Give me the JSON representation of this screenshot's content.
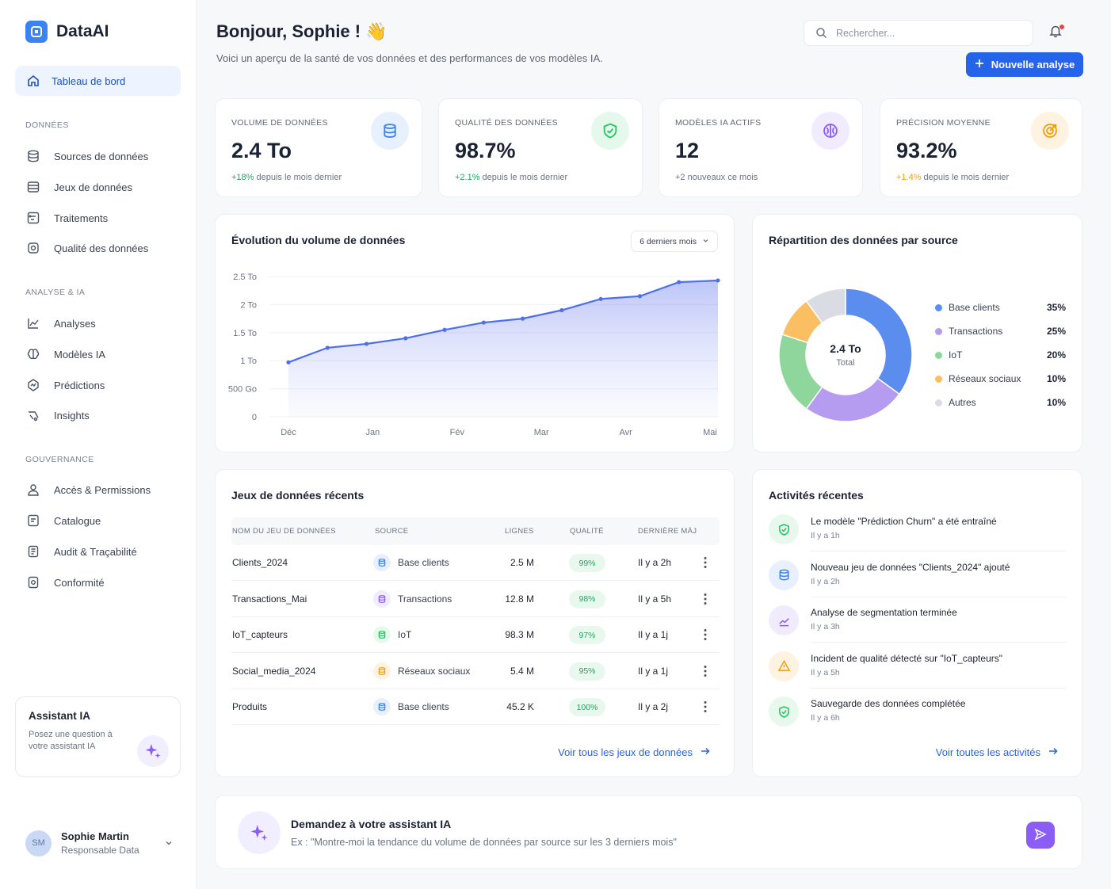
{
  "app": {
    "name": "DataAI"
  },
  "sidebar": {
    "active": {
      "label": "Tableau de bord",
      "icon": "home-icon"
    },
    "sections": {
      "donnees": {
        "title": "DONNÉES",
        "items": [
          "Sources de données",
          "Jeux de données",
          "Traitements",
          "Qualité des données"
        ]
      },
      "analyse": {
        "title": "ANALYSE & IA",
        "items": [
          "Analyses",
          "Modèles IA",
          "Prédictions",
          "Insights"
        ]
      },
      "gouvernance": {
        "title": "GOUVERNANCE",
        "items": [
          "Accès & Permissions",
          "Catalogue",
          "Audit & Traçabilité",
          "Conformité"
        ]
      }
    },
    "assistant_card": {
      "title": "Assistant IA",
      "description": "Posez une question à votre assistant IA"
    },
    "profile": {
      "initials": "SM",
      "name": "Sophie Martin",
      "role": "Responsable Data"
    }
  },
  "header": {
    "greeting": "Bonjour, Sophie ! 👋",
    "subtitle": "Voici un aperçu de la santé de vos données et des performances de vos modèles IA.",
    "search_placeholder": "Rechercher...",
    "new_button": "Nouvelle analyse"
  },
  "kpis": [
    {
      "label": "VOLUME DE DONNÉES",
      "value": "2.4 To",
      "delta": "+18%",
      "delta_text": " depuis le mois dernier",
      "icon": "database-icon",
      "accent": "#3b82f6"
    },
    {
      "label": "QUALITÉ DES DONNÉES",
      "value": "98.7%",
      "delta": "+2.1%",
      "delta_text": " depuis le mois dernier",
      "icon": "shield-check-icon",
      "accent": "#22c55e"
    },
    {
      "label": "MODÈLES IA ACTIFS",
      "value": "12",
      "delta": "",
      "delta_text": "+2 nouveaux ce mois",
      "icon": "brain-icon",
      "accent": "#8b5cf6"
    },
    {
      "label": "PRÉCISION MOYENNE",
      "value": "93.2%",
      "delta": "+1.4%",
      "delta_text": " depuis le mois dernier",
      "icon": "target-icon",
      "accent": "#f59e0b"
    }
  ],
  "volume_chart": {
    "title": "Évolution du volume de données",
    "period": "6 derniers mois",
    "chart_data": {
      "type": "area",
      "x_tick_labels": [
        "Déc",
        "Jan",
        "Fév",
        "Mar",
        "Avr",
        "Mai"
      ],
      "y_tick_labels": [
        "0",
        "500 Go",
        "1 To",
        "1.5 To",
        "2 To",
        "2.5 To"
      ],
      "ylim": [
        0,
        2.5
      ],
      "values": [
        0.97,
        1.23,
        1.3,
        1.4,
        1.55,
        1.68,
        1.75,
        1.9,
        2.1,
        2.15,
        2.4,
        2.43
      ],
      "color": "#4f6fe8"
    }
  },
  "source_chart": {
    "title": "Répartition des données par source",
    "center_value": "2.4 To",
    "center_label": "Total",
    "chart_data": {
      "type": "pie",
      "labels": [
        "Base clients",
        "Transactions",
        "IoT",
        "Réseaux sociaux",
        "Autres"
      ],
      "values": [
        35,
        25,
        20,
        10,
        10
      ],
      "value_labels": [
        "35%",
        "25%",
        "20%",
        "10%",
        "10%"
      ],
      "colors": [
        "#5b8def",
        "#b69cf0",
        "#8fd69c",
        "#fbbf63",
        "#d9dce2"
      ]
    }
  },
  "datasets": {
    "title": "Jeux de données récents",
    "headers": [
      "NOM DU JEU DE DONNÉES",
      "SOURCE",
      "LIGNES",
      "QUALITÉ",
      "DERNIÈRE MÀJ"
    ],
    "rows": [
      {
        "name": "Clients_2024",
        "source": "Base clients",
        "lines": "2.5 M",
        "quality": "99%",
        "updated": "Il y a 2h",
        "color": "#3b82f6",
        "bg": "#e8f0fe"
      },
      {
        "name": "Transactions_Mai",
        "source": "Transactions",
        "lines": "12.8 M",
        "quality": "98%",
        "updated": "Il y a 5h",
        "color": "#8b5cf6",
        "bg": "#f1ebfe"
      },
      {
        "name": "IoT_capteurs",
        "source": "IoT",
        "lines": "98.3 M",
        "quality": "97%",
        "updated": "Il y a 1j",
        "color": "#22c55e",
        "bg": "#e7f8ec"
      },
      {
        "name": "Social_media_2024",
        "source": "Réseaux sociaux",
        "lines": "5.4 M",
        "quality": "95%",
        "updated": "Il y a 1j",
        "color": "#f59e0b",
        "bg": "#fef3e0"
      },
      {
        "name": "Produits",
        "source": "Base clients",
        "lines": "45.2 K",
        "quality": "100%",
        "updated": "Il y a 2j",
        "color": "#3b82f6",
        "bg": "#e8f0fe"
      }
    ],
    "see_all": "Voir tous les jeux de données"
  },
  "activities": {
    "title": "Activités récentes",
    "items": [
      {
        "text": "Le modèle \"Prédiction Churn\" a été entraîné",
        "time": "Il y a 1h",
        "icon": "check-circle-icon",
        "color": "#22c55e",
        "bg": "#e7f8ec"
      },
      {
        "text": "Nouveau jeu de données \"Clients_2024\" ajouté",
        "time": "Il y a 2h",
        "icon": "database-icon",
        "color": "#3b82f6",
        "bg": "#e8f0fe"
      },
      {
        "text": "Analyse de segmentation terminée",
        "time": "Il y a 3h",
        "icon": "trend-icon",
        "color": "#8b5cf6",
        "bg": "#f1ebfe"
      },
      {
        "text": "Incident de qualité détecté sur \"IoT_capteurs\"",
        "time": "Il y a 5h",
        "icon": "warning-icon",
        "color": "#f59e0b",
        "bg": "#fef3e0"
      },
      {
        "text": "Sauvegarde des données complétée",
        "time": "Il y a 6h",
        "icon": "check-circle-icon",
        "color": "#22c55e",
        "bg": "#e7f8ec"
      }
    ],
    "see_all": "Voir toutes les activités"
  },
  "ask": {
    "title": "Demandez à votre assistant IA",
    "placeholder": "Ex : \"Montre-moi la tendance du volume de données par source sur les 3 derniers mois\""
  }
}
